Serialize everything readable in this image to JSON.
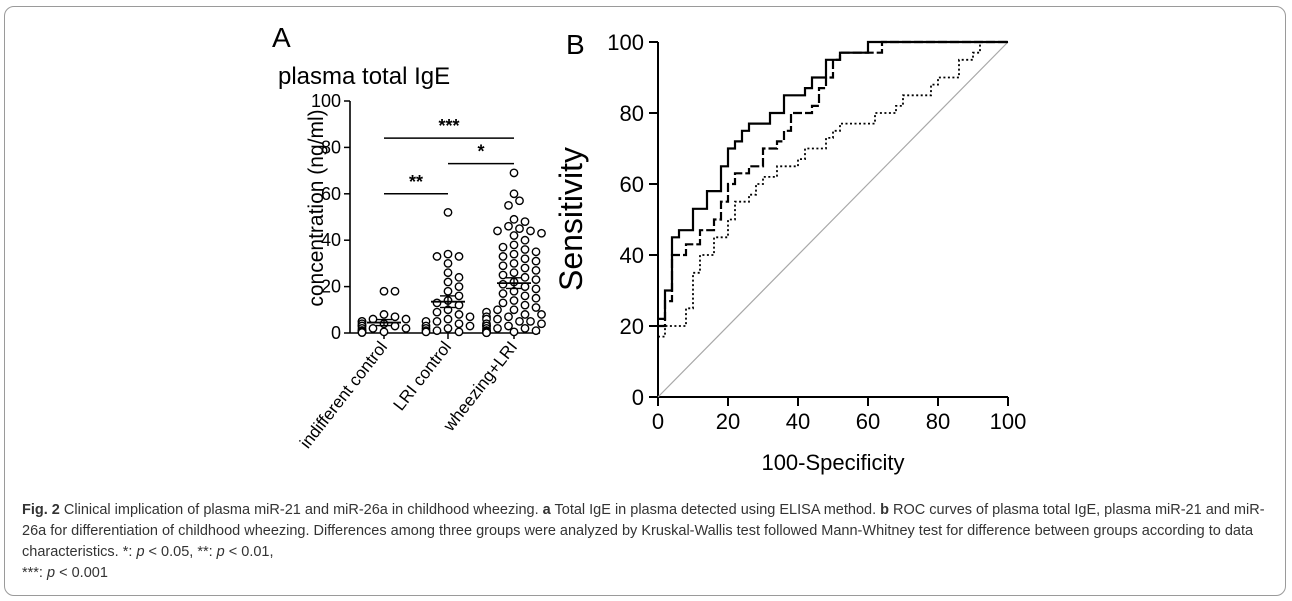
{
  "chart_data": [
    {
      "type": "scatter",
      "panel_label": "A",
      "title": "plasma total IgE",
      "ylabel": "concentration (ng/ml)",
      "ylim": [
        0,
        100
      ],
      "yticks": [
        0,
        20,
        40,
        60,
        80,
        100
      ],
      "categories": [
        "indifferent control",
        "LRI control",
        "wheezing+LRI"
      ],
      "series": [
        {
          "category": "indifferent control",
          "mean": 4.5,
          "sem": 1.3,
          "values": [
            18,
            18,
            8,
            7,
            6,
            6,
            5,
            5,
            4,
            4,
            3,
            3,
            3,
            2,
            2,
            2,
            1,
            1,
            1,
            0.5,
            0.5,
            0.5,
            0.2,
            0.2
          ]
        },
        {
          "category": "LRI control",
          "mean": 13.5,
          "sem": 2.5,
          "values": [
            52,
            34,
            33,
            33,
            30,
            26,
            24,
            22,
            20,
            18,
            16,
            14,
            13,
            12,
            10,
            9,
            8,
            7,
            6,
            5,
            5,
            4,
            3,
            3,
            2,
            2,
            1,
            1,
            0.5,
            0.5
          ]
        },
        {
          "category": "wheezing+LRI",
          "mean": 21.5,
          "sem": 2.3,
          "values": [
            69,
            60,
            57,
            55,
            49,
            48,
            46,
            45,
            44,
            44,
            43,
            42,
            40,
            38,
            37,
            36,
            35,
            34,
            33,
            32,
            31,
            30,
            29,
            28,
            27,
            26,
            25,
            24,
            23,
            22,
            21,
            20,
            19,
            18,
            17,
            16,
            15,
            14,
            13,
            12,
            11,
            10,
            10,
            9,
            8,
            8,
            7,
            7,
            6,
            6,
            5,
            5,
            4,
            4,
            3,
            3,
            3,
            2,
            2,
            2,
            1,
            1,
            1,
            0.5,
            0.5,
            0.5,
            0.2,
            0.2,
            0.2,
            0.1
          ]
        }
      ],
      "significance": [
        {
          "from": 0,
          "to": 1,
          "y": 60,
          "label": "**"
        },
        {
          "from": 1,
          "to": 2,
          "y": 73,
          "label": "*"
        },
        {
          "from": 0,
          "to": 2,
          "y": 84,
          "label": "***"
        }
      ]
    },
    {
      "type": "line",
      "panel_label": "B",
      "xlabel": "100-Specificity",
      "ylabel": "Sensitivity",
      "xlim": [
        0,
        100
      ],
      "ylim": [
        0,
        100
      ],
      "xticks": [
        0,
        20,
        40,
        60,
        80,
        100
      ],
      "yticks": [
        0,
        20,
        40,
        60,
        80,
        100
      ],
      "series": [
        {
          "style": "solid",
          "points": [
            [
              0,
              22
            ],
            [
              2,
              22
            ],
            [
              2,
              30
            ],
            [
              4,
              30
            ],
            [
              4,
              45
            ],
            [
              6,
              45
            ],
            [
              6,
              47
            ],
            [
              10,
              47
            ],
            [
              10,
              53
            ],
            [
              14,
              53
            ],
            [
              14,
              58
            ],
            [
              18,
              58
            ],
            [
              18,
              65
            ],
            [
              20,
              65
            ],
            [
              20,
              70
            ],
            [
              22,
              70
            ],
            [
              22,
              72
            ],
            [
              24,
              72
            ],
            [
              24,
              75
            ],
            [
              26,
              75
            ],
            [
              26,
              77
            ],
            [
              32,
              77
            ],
            [
              32,
              80
            ],
            [
              36,
              80
            ],
            [
              36,
              85
            ],
            [
              42,
              85
            ],
            [
              42,
              87
            ],
            [
              44,
              87
            ],
            [
              44,
              90
            ],
            [
              48,
              90
            ],
            [
              48,
              95
            ],
            [
              52,
              95
            ],
            [
              52,
              97
            ],
            [
              60,
              97
            ],
            [
              60,
              100
            ],
            [
              100,
              100
            ]
          ]
        },
        {
          "style": "dashed",
          "points": [
            [
              0,
              20
            ],
            [
              2,
              20
            ],
            [
              2,
              27
            ],
            [
              4,
              27
            ],
            [
              4,
              40
            ],
            [
              8,
              40
            ],
            [
              8,
              43
            ],
            [
              12,
              43
            ],
            [
              12,
              47
            ],
            [
              16,
              47
            ],
            [
              16,
              50
            ],
            [
              18,
              50
            ],
            [
              18,
              55
            ],
            [
              20,
              55
            ],
            [
              20,
              60
            ],
            [
              22,
              60
            ],
            [
              22,
              63
            ],
            [
              26,
              63
            ],
            [
              26,
              65
            ],
            [
              30,
              65
            ],
            [
              30,
              70
            ],
            [
              34,
              70
            ],
            [
              34,
              72
            ],
            [
              36,
              72
            ],
            [
              36,
              75
            ],
            [
              38,
              75
            ],
            [
              38,
              80
            ],
            [
              44,
              80
            ],
            [
              44,
              82
            ],
            [
              46,
              82
            ],
            [
              46,
              87
            ],
            [
              48,
              87
            ],
            [
              48,
              90
            ],
            [
              50,
              90
            ],
            [
              50,
              95
            ],
            [
              52,
              95
            ],
            [
              52,
              97
            ],
            [
              64,
              97
            ],
            [
              64,
              100
            ],
            [
              100,
              100
            ]
          ]
        },
        {
          "style": "dotted",
          "points": [
            [
              0,
              17
            ],
            [
              2,
              17
            ],
            [
              2,
              20
            ],
            [
              8,
              20
            ],
            [
              8,
              25
            ],
            [
              10,
              25
            ],
            [
              10,
              35
            ],
            [
              12,
              35
            ],
            [
              12,
              40
            ],
            [
              16,
              40
            ],
            [
              16,
              45
            ],
            [
              20,
              45
            ],
            [
              20,
              50
            ],
            [
              22,
              50
            ],
            [
              22,
              55
            ],
            [
              26,
              55
            ],
            [
              26,
              57
            ],
            [
              28,
              57
            ],
            [
              28,
              60
            ],
            [
              30,
              60
            ],
            [
              30,
              62
            ],
            [
              34,
              62
            ],
            [
              34,
              65
            ],
            [
              40,
              65
            ],
            [
              40,
              67
            ],
            [
              42,
              67
            ],
            [
              42,
              70
            ],
            [
              48,
              70
            ],
            [
              48,
              73
            ],
            [
              50,
              73
            ],
            [
              50,
              75
            ],
            [
              52,
              75
            ],
            [
              52,
              77
            ],
            [
              62,
              77
            ],
            [
              62,
              80
            ],
            [
              68,
              80
            ],
            [
              68,
              82
            ],
            [
              70,
              82
            ],
            [
              70,
              85
            ],
            [
              78,
              85
            ],
            [
              78,
              88
            ],
            [
              80,
              88
            ],
            [
              80,
              90
            ],
            [
              86,
              90
            ],
            [
              86,
              95
            ],
            [
              90,
              95
            ],
            [
              90,
              97
            ],
            [
              92,
              97
            ],
            [
              92,
              100
            ],
            [
              100,
              100
            ]
          ]
        },
        {
          "style": "reference",
          "points": [
            [
              0,
              0
            ],
            [
              100,
              100
            ]
          ]
        }
      ]
    }
  ],
  "caption": {
    "fig_label": "Fig. 2",
    "part_a_letter": "a",
    "part_b_letter": "b",
    "text_intro": "Clinical implication of plasma miR-21 and miR-26a in childhood wheezing.",
    "text_a": "Total IgE in plasma detected using ELISA method.",
    "text_b": "ROC curves of plasma total IgE, plasma miR-21 and miR-26a for differentiation of childhood wheezing. Differences among three groups were analyzed by Kruskal-Wallis test followed Mann-Whitney test for difference between groups according to data characteristics. *:",
    "p_letter": "p",
    "sig1": "< 0.05, **:",
    "sig2": "< 0.01,",
    "sig3_prefix": "***:",
    "sig3": "< 0.001"
  }
}
